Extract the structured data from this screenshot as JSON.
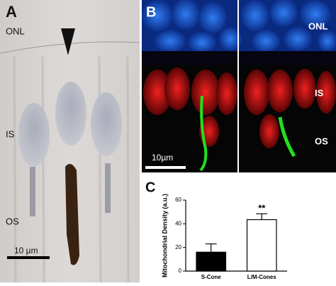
{
  "panel_a": {
    "label": "A",
    "layers": [
      "ONL",
      "IS",
      "OS"
    ],
    "scale_bar": "10 µm"
  },
  "panel_b": {
    "label": "B",
    "layers": [
      "ONL",
      "IS",
      "OS"
    ],
    "scale_bar": "10µm"
  },
  "chart_data": {
    "type": "bar",
    "panel_label": "C",
    "y_label": "Mitochondrial Density (a.u.)",
    "categories": [
      "S-Cone",
      "L/M-Cones"
    ],
    "series": [
      {
        "values": [
          16,
          43.5
        ],
        "errors": [
          7,
          5
        ],
        "colors": [
          "#000000",
          "#ffffff"
        ]
      }
    ],
    "annotation": "**",
    "ylim": [
      0,
      60
    ],
    "yticks": [
      0,
      20,
      40,
      60
    ]
  }
}
